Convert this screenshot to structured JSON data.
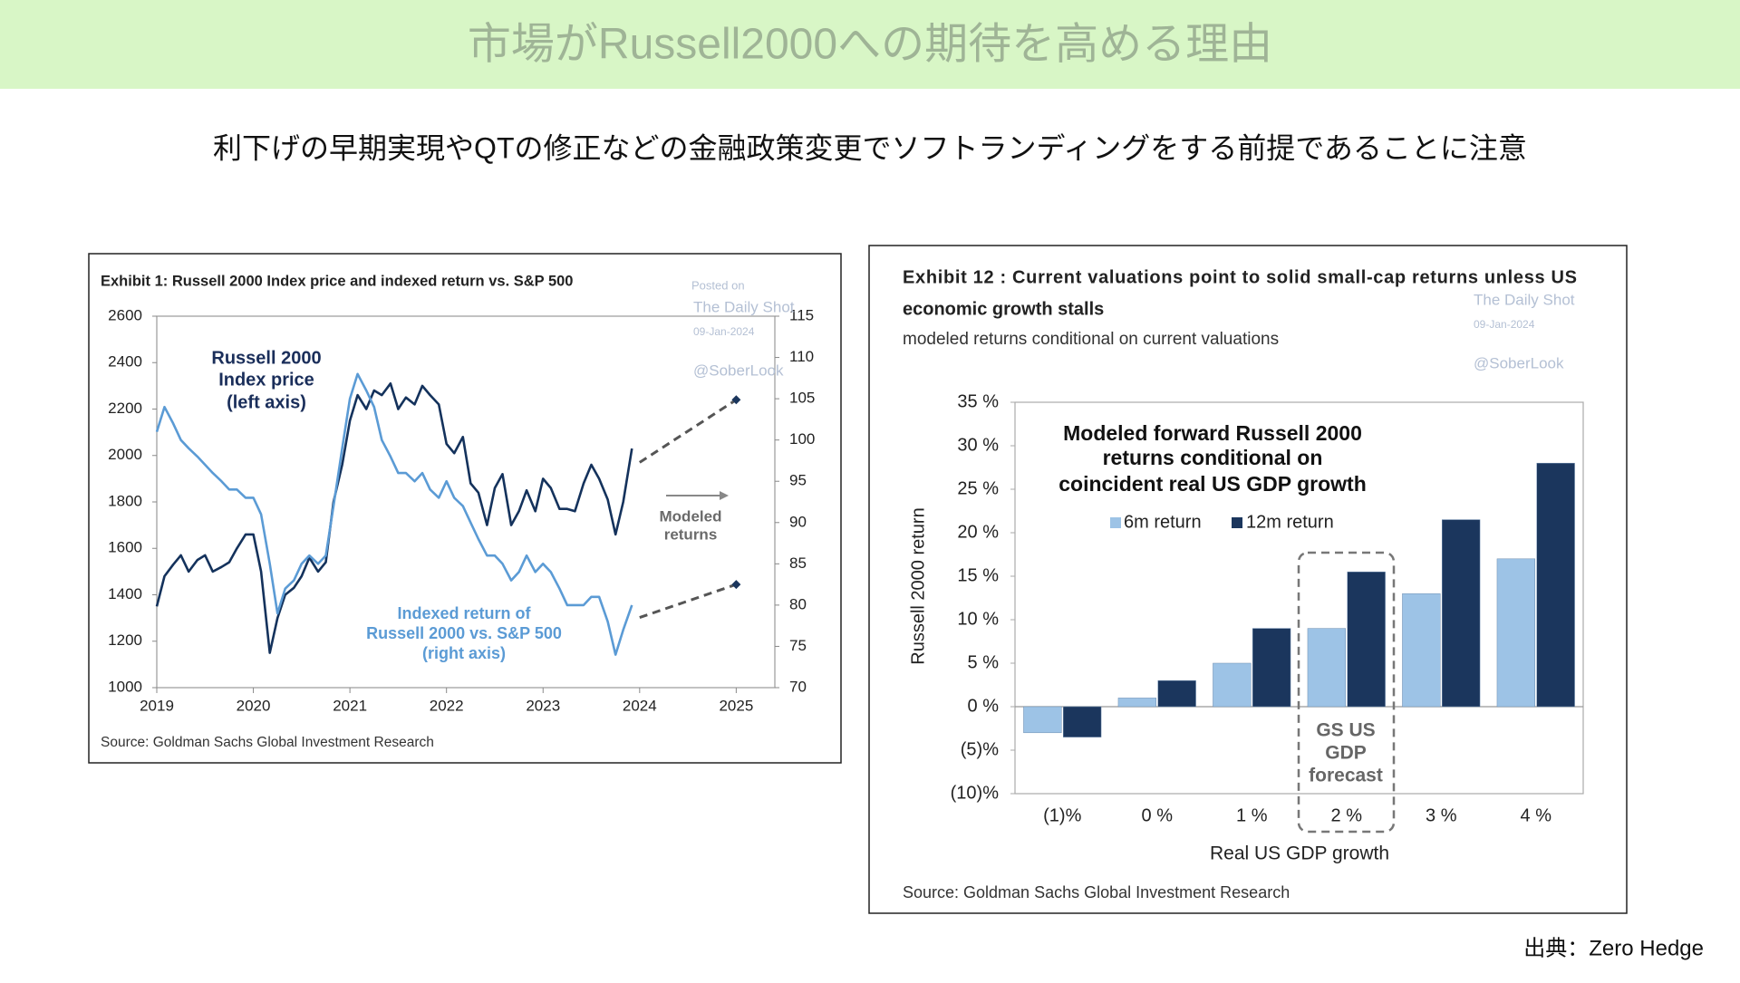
{
  "header": {
    "title": "市場がRussell2000への期待を高める理由",
    "subtitle": "利下げの早期実現やQTの修正などの金融政策変更でソフトランディングをする前提であることに注意"
  },
  "credit": "出典：Zero Hedge",
  "chart_data": [
    {
      "type": "line",
      "title": "Exhibit 1: Russell 2000 Index price and indexed return vs. S&P 500",
      "source": "Source: Goldman Sachs Global Investment Research",
      "watermark": [
        "Posted on",
        "The Daily Shot",
        "09-Jan-2024",
        "@SoberLook"
      ],
      "annotations": [
        [
          "Russell 2000",
          "Index price",
          "(left axis)"
        ],
        [
          "Indexed return of",
          "Russell 2000 vs. S&P 500",
          "(right axis)"
        ],
        [
          "Modeled",
          "returns"
        ]
      ],
      "xlim": [
        2019,
        2025.4
      ],
      "xticks": [
        2019,
        2020,
        2021,
        2022,
        2023,
        2024,
        2025
      ],
      "ylim": [
        1000,
        2600
      ],
      "yticks": [
        1000,
        1200,
        1400,
        1600,
        1800,
        2000,
        2200,
        2400,
        2600
      ],
      "y2lim": [
        70,
        115
      ],
      "y2ticks": [
        70,
        75,
        80,
        85,
        90,
        95,
        100,
        105,
        110,
        115
      ],
      "series": [
        {
          "color": "#14325c",
          "style": "solid",
          "x": [
            2019.0,
            2019.08,
            2019.17,
            2019.25,
            2019.33,
            2019.42,
            2019.5,
            2019.58,
            2019.67,
            2019.75,
            2019.83,
            2019.92,
            2020.0,
            2020.08,
            2020.17,
            2020.25,
            2020.33,
            2020.42,
            2020.5,
            2020.58,
            2020.67,
            2020.75,
            2020.83,
            2020.92,
            2021.0,
            2021.08,
            2021.17,
            2021.25,
            2021.33,
            2021.42,
            2021.5,
            2021.58,
            2021.67,
            2021.75,
            2021.83,
            2021.92,
            2022.0,
            2022.08,
            2022.17,
            2022.25,
            2022.33,
            2022.42,
            2022.5,
            2022.58,
            2022.67,
            2022.75,
            2022.83,
            2022.92,
            2023.0,
            2023.08,
            2023.17,
            2023.25,
            2023.33,
            2023.42,
            2023.5,
            2023.58,
            2023.67,
            2023.75,
            2023.83,
            2023.92
          ],
          "values": [
            1350,
            1480,
            1530,
            1570,
            1500,
            1550,
            1570,
            1500,
            1520,
            1540,
            1600,
            1660,
            1660,
            1500,
            1150,
            1300,
            1400,
            1430,
            1480,
            1560,
            1500,
            1540,
            1800,
            1960,
            2150,
            2260,
            2200,
            2280,
            2260,
            2310,
            2200,
            2250,
            2220,
            2300,
            2260,
            2220,
            2050,
            2010,
            2080,
            1880,
            1840,
            1700,
            1860,
            1920,
            1700,
            1760,
            1850,
            1760,
            1900,
            1860,
            1770,
            1770,
            1760,
            1880,
            1960,
            1900,
            1810,
            1660,
            1800,
            2030
          ]
        },
        {
          "color": "#5b9bd5",
          "style": "solid",
          "axis": "y2",
          "x": [
            2019.0,
            2019.08,
            2019.17,
            2019.25,
            2019.33,
            2019.42,
            2019.5,
            2019.58,
            2019.67,
            2019.75,
            2019.83,
            2019.92,
            2020.0,
            2020.08,
            2020.17,
            2020.25,
            2020.33,
            2020.42,
            2020.5,
            2020.58,
            2020.67,
            2020.75,
            2020.83,
            2020.92,
            2021.0,
            2021.08,
            2021.17,
            2021.25,
            2021.33,
            2021.42,
            2021.5,
            2021.58,
            2021.67,
            2021.75,
            2021.83,
            2021.92,
            2022.0,
            2022.08,
            2022.17,
            2022.25,
            2022.33,
            2022.42,
            2022.5,
            2022.58,
            2022.67,
            2022.75,
            2022.83,
            2022.92,
            2023.0,
            2023.08,
            2023.17,
            2023.25,
            2023.33,
            2023.42,
            2023.5,
            2023.58,
            2023.67,
            2023.75,
            2023.83,
            2023.92
          ],
          "values": [
            101,
            104,
            102,
            100,
            99,
            98,
            97,
            96,
            95,
            94,
            94,
            93,
            93,
            91,
            85,
            79,
            82,
            83,
            85,
            86,
            85,
            86,
            92,
            99,
            105,
            108,
            106,
            104,
            100,
            98,
            96,
            96,
            95,
            96,
            94,
            93,
            95,
            93,
            92,
            90,
            88,
            86,
            86,
            85,
            83,
            84,
            86,
            84,
            85,
            84,
            82,
            80,
            80,
            80,
            81,
            81,
            78,
            74,
            77,
            80
          ]
        },
        {
          "color": "#555555",
          "style": "dashed",
          "x": [
            2024.0,
            2025.0
          ],
          "values": [
            1970,
            2240
          ]
        },
        {
          "color": "#555555",
          "style": "dashed",
          "axis": "y2",
          "x": [
            2024.0,
            2025.0
          ],
          "values": [
            78.5,
            82.5
          ]
        }
      ]
    },
    {
      "type": "bar",
      "title": [
        "Exhibit 12 : Current valuations point to solid small-cap returns unless US",
        "economic growth stalls"
      ],
      "subtitle": "modeled returns conditional on current valuations",
      "watermark": [
        "The Daily Shot",
        "09-Jan-2024",
        "@SoberLook"
      ],
      "inner_title": [
        "Modeled forward Russell 2000",
        "returns conditional on",
        "coincident real US GDP growth"
      ],
      "callout": [
        "GS US",
        "GDP",
        "forecast"
      ],
      "xlabel": "Real US GDP growth",
      "ylabel": "Russell 2000 return",
      "source": "Source: Goldman Sachs Global Investment Research",
      "categories": [
        "(1)%",
        "0 %",
        "1 %",
        "2 %",
        "3 %",
        "4 %"
      ],
      "series": [
        {
          "name": "6m return",
          "color": "#9dc3e6",
          "values": [
            -3,
            1,
            5,
            9,
            13,
            17
          ]
        },
        {
          "name": "12m return",
          "color": "#1b365d",
          "values": [
            -3.5,
            3,
            9,
            15.5,
            21.5,
            28
          ]
        }
      ],
      "ylim": [
        -10,
        35
      ],
      "yticks": [
        {
          "value": -10,
          "label": "(10)%"
        },
        {
          "value": -5,
          "label": "(5)%"
        },
        {
          "value": 0,
          "label": "0 %"
        },
        {
          "value": 5,
          "label": "5 %"
        },
        {
          "value": 10,
          "label": "10 %"
        },
        {
          "value": 15,
          "label": "15 %"
        },
        {
          "value": 20,
          "label": "20 %"
        },
        {
          "value": 25,
          "label": "25 %"
        },
        {
          "value": 30,
          "label": "30 %"
        },
        {
          "value": 35,
          "label": "35 %"
        }
      ]
    }
  ]
}
